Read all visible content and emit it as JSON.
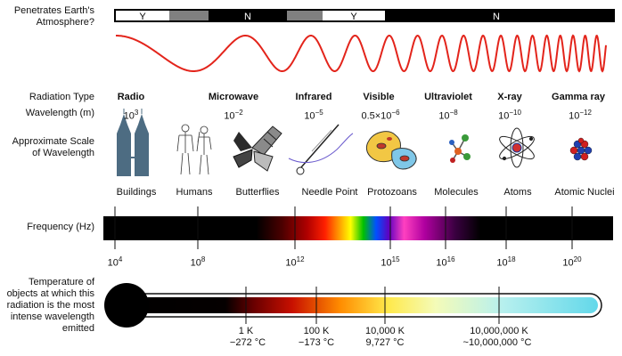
{
  "atmosphere": {
    "label": "Penetrates Earth's Atmosphere?",
    "segments": [
      "Y",
      "N",
      "Y",
      "N"
    ],
    "colors": {
      "yes": "#ffffff",
      "partial": "#808080",
      "no": "#000000"
    }
  },
  "wave": {
    "color": "#e3241b"
  },
  "row_labels": {
    "radiation_type": "Radiation Type",
    "wavelength": "Wavelength (m)",
    "scale": "Approximate Scale of Wavelength",
    "frequency": "Frequency (Hz)",
    "temperature": "Temperature of objects at which this radiation is the most intense wavelength emitted"
  },
  "radiation_types": [
    {
      "name": "Radio",
      "wavelength": "10",
      "exp": "3"
    },
    {
      "name": "Microwave",
      "wavelength": "10",
      "exp": "−2"
    },
    {
      "name": "Infrared",
      "wavelength": "10",
      "exp": "−5"
    },
    {
      "name": "Visible",
      "wavelength": "0.5×10",
      "exp": "−6"
    },
    {
      "name": "Ultraviolet",
      "wavelength": "10",
      "exp": "−8"
    },
    {
      "name": "X-ray",
      "wavelength": "10",
      "exp": "−10"
    },
    {
      "name": "Gamma ray",
      "wavelength": "10",
      "exp": "−12"
    }
  ],
  "scale_objects": [
    {
      "label": "Buildings",
      "icon": "buildings-icon"
    },
    {
      "label": "Humans",
      "icon": "humans-icon"
    },
    {
      "label": "Butterflies",
      "icon": "butterfly-icon"
    },
    {
      "label": "Needle Point",
      "icon": "needle-icon"
    },
    {
      "label": "Protozoans",
      "icon": "protozoan-icon"
    },
    {
      "label": "Molecules",
      "icon": "molecule-icon"
    },
    {
      "label": "Atoms",
      "icon": "atom-icon"
    },
    {
      "label": "Atomic Nuclei",
      "icon": "nucleus-icon"
    }
  ],
  "frequency_ticks": [
    {
      "base": "10",
      "exp": "4"
    },
    {
      "base": "10",
      "exp": "8"
    },
    {
      "base": "10",
      "exp": "12"
    },
    {
      "base": "10",
      "exp": "15"
    },
    {
      "base": "10",
      "exp": "16"
    },
    {
      "base": "10",
      "exp": "18"
    },
    {
      "base": "10",
      "exp": "20"
    }
  ],
  "temperature_ticks": [
    {
      "kelvin": "1 K",
      "celsius": "−272 °C"
    },
    {
      "kelvin": "100 K",
      "celsius": "−173 °C"
    },
    {
      "kelvin": "10,000 K",
      "celsius": "9,727 °C"
    },
    {
      "kelvin": "10,000,000 K",
      "celsius": "~10,000,000 °C"
    }
  ]
}
